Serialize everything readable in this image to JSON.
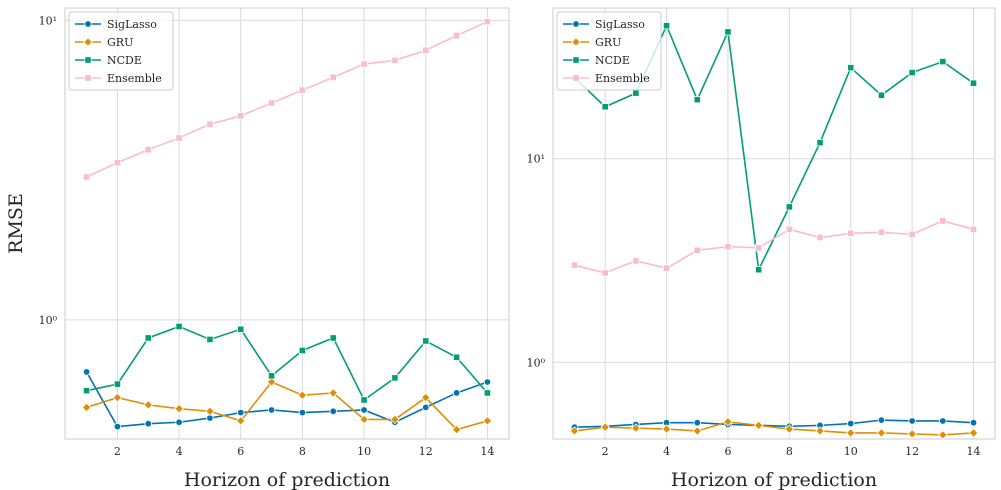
{
  "chart_data": [
    {
      "type": "line",
      "title": "",
      "xlabel": "Horizon of prediction",
      "ylabel": "RMSE",
      "yscale": "log",
      "ylim": [
        0.4,
        11
      ],
      "xlim": [
        0.3,
        14.7
      ],
      "x": [
        1,
        2,
        3,
        4,
        5,
        6,
        7,
        8,
        9,
        10,
        11,
        12,
        13,
        14
      ],
      "xticks": [
        2,
        4,
        6,
        8,
        10,
        12,
        14
      ],
      "xtick_labels": [
        "2",
        "4",
        "6",
        "8",
        "10",
        "12",
        "14"
      ],
      "yticks": [
        1,
        10
      ],
      "ytick_labels": [
        "10⁰",
        "10¹"
      ],
      "grid": true,
      "legend_position": "top-left",
      "series": [
        {
          "name": "SigLasso",
          "color": "#0173b2",
          "marker": "circle",
          "values": [
            0.67,
            0.44,
            0.45,
            0.455,
            0.47,
            0.49,
            0.5,
            0.49,
            0.495,
            0.5,
            0.455,
            0.51,
            0.57,
            0.62
          ]
        },
        {
          "name": "GRU",
          "color": "#de8f05",
          "marker": "diamond",
          "values": [
            0.51,
            0.55,
            0.52,
            0.505,
            0.495,
            0.46,
            0.62,
            0.56,
            0.57,
            0.465,
            0.465,
            0.55,
            0.43,
            0.46
          ]
        },
        {
          "name": "NCDE",
          "color": "#029e73",
          "marker": "square",
          "values": [
            0.58,
            0.61,
            0.87,
            0.95,
            0.86,
            0.93,
            0.65,
            0.79,
            0.87,
            0.54,
            0.64,
            0.85,
            0.75,
            0.57
          ]
        },
        {
          "name": "Ensemble",
          "color": "#fbbad3",
          "marker": "square",
          "values": [
            3.0,
            3.35,
            3.7,
            4.05,
            4.5,
            4.8,
            5.3,
            5.85,
            6.45,
            7.15,
            7.35,
            7.95,
            8.9,
            9.9
          ]
        }
      ]
    },
    {
      "type": "line",
      "title": "",
      "xlabel": "Horizon of prediction",
      "ylabel": "",
      "yscale": "log",
      "ylim": [
        0.42,
        55
      ],
      "xlim": [
        0.3,
        14.7
      ],
      "x": [
        1,
        2,
        3,
        4,
        5,
        6,
        7,
        8,
        9,
        10,
        11,
        12,
        13,
        14
      ],
      "xticks": [
        2,
        4,
        6,
        8,
        10,
        12,
        14
      ],
      "xtick_labels": [
        "2",
        "4",
        "6",
        "8",
        "10",
        "12",
        "14"
      ],
      "yticks": [
        1,
        10
      ],
      "ytick_labels": [
        "10⁰",
        "10¹"
      ],
      "grid": true,
      "legend_position": "top-left",
      "series": [
        {
          "name": "SigLasso",
          "color": "#0173b2",
          "marker": "circle",
          "values": [
            0.48,
            0.485,
            0.495,
            0.505,
            0.505,
            0.495,
            0.49,
            0.485,
            0.49,
            0.5,
            0.52,
            0.515,
            0.515,
            0.505
          ]
        },
        {
          "name": "GRU",
          "color": "#de8f05",
          "marker": "diamond",
          "values": [
            0.46,
            0.48,
            0.475,
            0.47,
            0.46,
            0.51,
            0.49,
            0.47,
            0.46,
            0.45,
            0.45,
            0.445,
            0.44,
            0.45
          ]
        },
        {
          "name": "NCDE",
          "color": "#029e73",
          "marker": "square",
          "values": [
            25,
            18,
            21,
            45,
            19.5,
            42,
            2.85,
            5.8,
            12,
            28,
            20.5,
            26.5,
            30,
            23.5
          ]
        },
        {
          "name": "Ensemble",
          "color": "#fbbad3",
          "marker": "square",
          "values": [
            3.0,
            2.75,
            3.15,
            2.9,
            3.55,
            3.7,
            3.65,
            4.5,
            4.1,
            4.3,
            4.35,
            4.25,
            4.95,
            4.5
          ]
        }
      ]
    }
  ]
}
